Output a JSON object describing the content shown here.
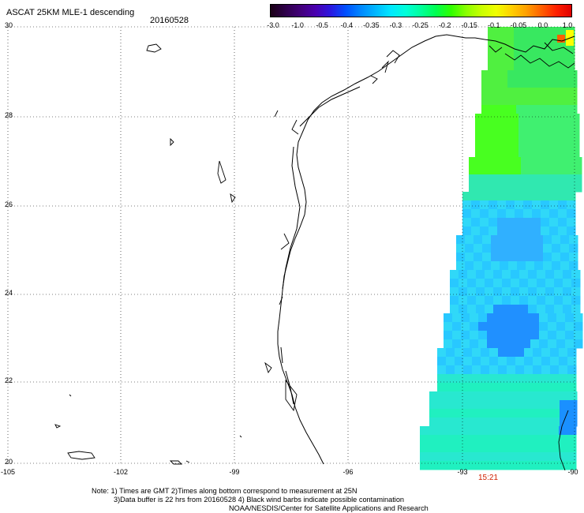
{
  "header": {
    "title": "ASCAT 25KM MLE-1 descending",
    "date": "20160528"
  },
  "colorbar": {
    "labels": [
      "-3.0",
      "-1.0",
      "-0.5",
      "-0.4",
      "-0.35",
      "-0.3",
      "-0.25",
      "-0.2",
      "-0.15",
      "-0.1",
      "-0.05",
      "0.0",
      "1.0"
    ],
    "colors": [
      "#1a0015",
      "#2e004a",
      "#42007a",
      "#4a00b0",
      "#2a18e0",
      "#0050ff",
      "#0088ff",
      "#00b8ff",
      "#00e8ff",
      "#00ffd8",
      "#00ff9a",
      "#00ff50",
      "#30ff00",
      "#8aff00",
      "#c8ff00",
      "#f0ff00",
      "#ffd000",
      "#ffa000",
      "#ff6000",
      "#ff2000",
      "#e00000"
    ]
  },
  "map": {
    "lat_labels": [
      "30",
      "28",
      "26",
      "24",
      "22",
      "20"
    ],
    "lon_labels": [
      "-105",
      "-102",
      "-99",
      "-96",
      "-93",
      "-90"
    ],
    "swath_time": "15:21"
  },
  "notes": {
    "line1": "Note: 1) Times are GMT 2)Times along bottom correspond to measurement at 25N",
    "line2": "3)Data buffer is 22 hrs from 20160528 4) Black wind barbs indicate possible contamination",
    "line3": "NOAA/NESDIS/Center for Satellite Applications and Research"
  }
}
